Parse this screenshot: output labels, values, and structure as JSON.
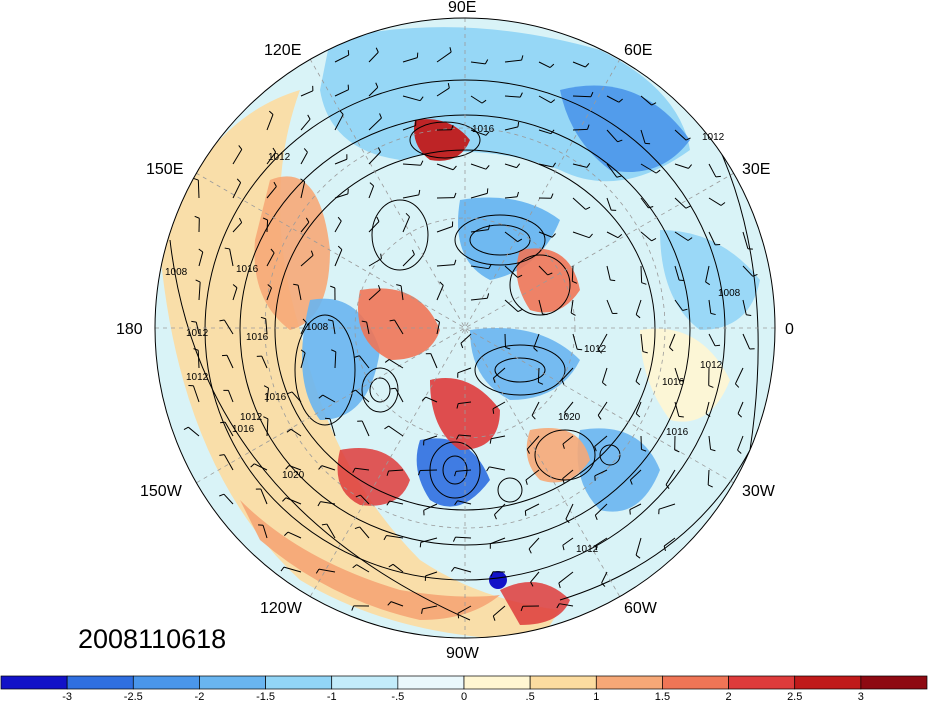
{
  "map": {
    "projection": "north-polar-stereographic",
    "timestamp": "2008110618",
    "longitude_labels": [
      "90E",
      "60E",
      "30E",
      "0",
      "30W",
      "60W",
      "90W",
      "120W",
      "150W",
      "180",
      "150E",
      "120E"
    ],
    "isobar_labels": [
      "1016",
      "1012",
      "1012",
      "1008",
      "1016",
      "1012",
      "1008",
      "1016",
      "1012",
      "1016",
      "1020",
      "1012",
      "1016",
      "1020",
      "1016",
      "1012",
      "1008",
      "1012",
      "1016",
      "1012"
    ],
    "background_fill": "#d9f3f7"
  },
  "colorbar": {
    "tick_labels": [
      "-3",
      "-2.5",
      "-2",
      "-1.5",
      "-1",
      "-.5",
      "0",
      ".5",
      "1",
      "1.5",
      "2",
      "2.5",
      "3"
    ],
    "colors": [
      "#1212c8",
      "#2f6fe0",
      "#4a96ea",
      "#69b5f0",
      "#92d5f6",
      "#c3ecfa",
      "#eaf8fc",
      "#fff6d2",
      "#fcdca0",
      "#f6a877",
      "#ef7556",
      "#de3b3b",
      "#c01a1a",
      "#8e0a12"
    ]
  }
}
